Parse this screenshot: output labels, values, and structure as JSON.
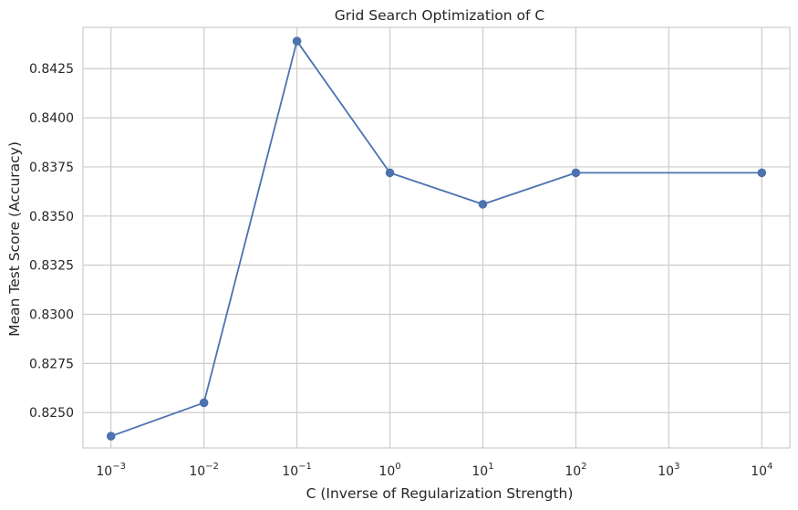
{
  "chart_data": {
    "type": "line",
    "title": "Grid Search Optimization of C",
    "xlabel": "C (Inverse of Regularization Strength)",
    "ylabel": "Mean Test Score (Accuracy)",
    "x_scale": "log",
    "x_ticks": [
      {
        "value": 0.001,
        "base": "10",
        "exp": "−3"
      },
      {
        "value": 0.01,
        "base": "10",
        "exp": "−2"
      },
      {
        "value": 0.1,
        "base": "10",
        "exp": "−1"
      },
      {
        "value": 1,
        "base": "10",
        "exp": "0"
      },
      {
        "value": 10,
        "base": "10",
        "exp": "1"
      },
      {
        "value": 100,
        "base": "10",
        "exp": "2"
      },
      {
        "value": 1000,
        "base": "10",
        "exp": "3"
      },
      {
        "value": 10000,
        "base": "10",
        "exp": "4"
      }
    ],
    "y_ticks": [
      {
        "value": 0.825,
        "label": "0.8250"
      },
      {
        "value": 0.8275,
        "label": "0.8275"
      },
      {
        "value": 0.83,
        "label": "0.8300"
      },
      {
        "value": 0.8325,
        "label": "0.8325"
      },
      {
        "value": 0.835,
        "label": "0.8350"
      },
      {
        "value": 0.8375,
        "label": "0.8375"
      },
      {
        "value": 0.84,
        "label": "0.8400"
      },
      {
        "value": 0.8425,
        "label": "0.8425"
      }
    ],
    "xlim": [
      0.0005,
      20000
    ],
    "ylim": [
      0.8232,
      0.8446
    ],
    "grid": true,
    "series": [
      {
        "color": "#4c72b0",
        "marker": "circle",
        "x": [
          0.001,
          0.01,
          0.1,
          1,
          10,
          100,
          10000
        ],
        "y": [
          0.8238,
          0.8255,
          0.8439,
          0.8372,
          0.8356,
          0.8372,
          0.8372
        ]
      }
    ]
  }
}
